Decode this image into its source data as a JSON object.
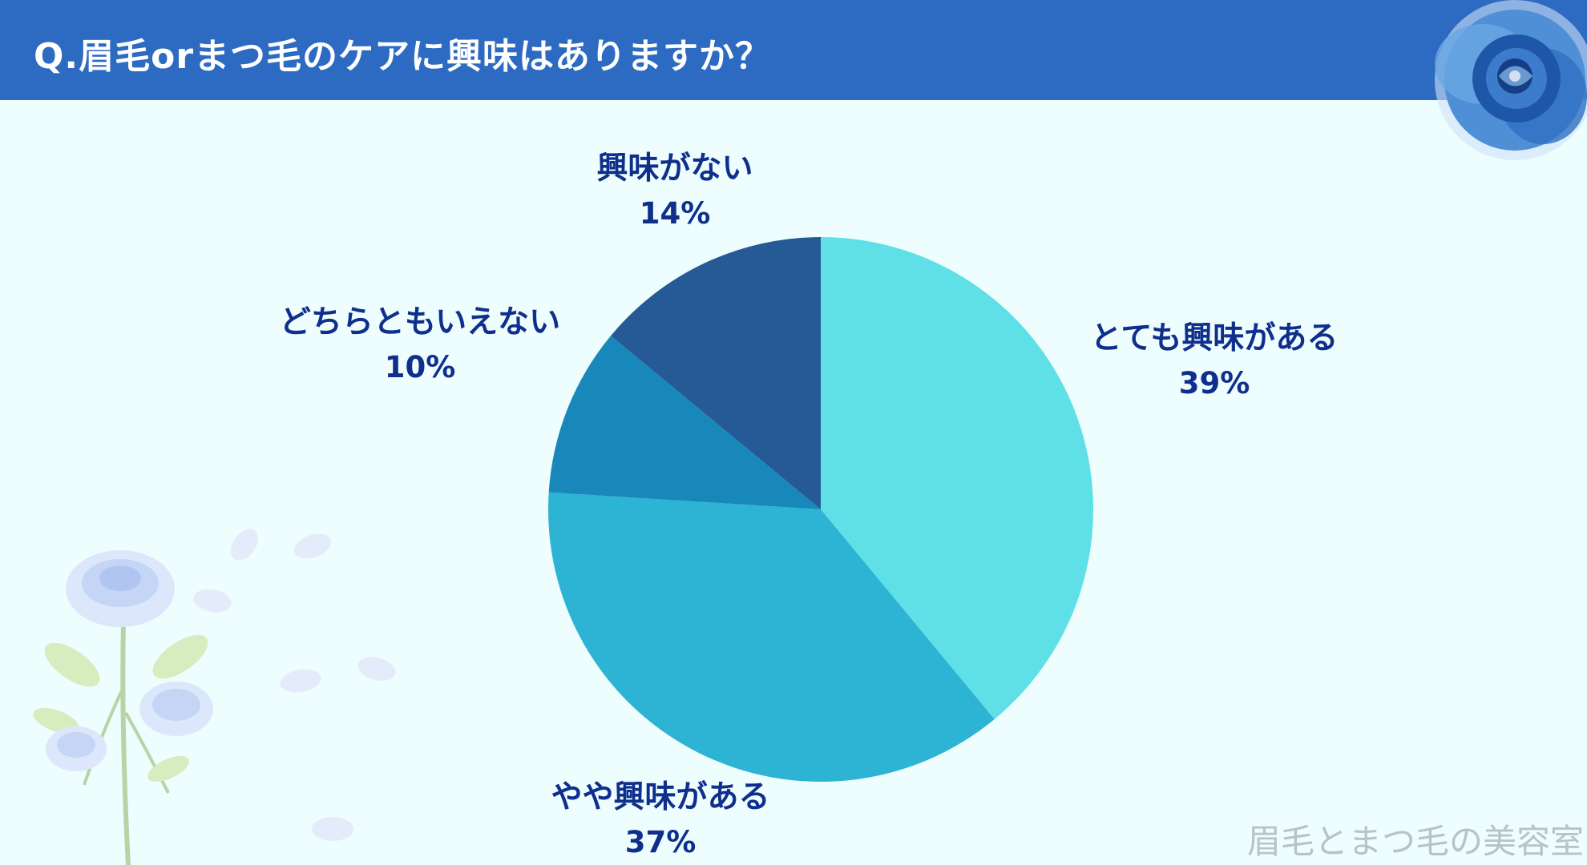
{
  "header": {
    "title": "Q.眉毛orまつ毛のケアに興味はありますか？"
  },
  "chart_data": {
    "type": "pie",
    "title": "Q.眉毛orまつ毛のケアに興味はありますか？",
    "categories": [
      "とても興味がある",
      "やや興味がある",
      "どちらともいえない",
      "興味がない"
    ],
    "values": [
      39,
      37,
      10,
      14
    ],
    "labels": [
      "39%",
      "37%",
      "10%",
      "14%"
    ],
    "colors": [
      "#5ee0e6",
      "#2db3d4",
      "#1888ba",
      "#255a96"
    ]
  },
  "watermark": "眉毛とまつ毛の美容室"
}
